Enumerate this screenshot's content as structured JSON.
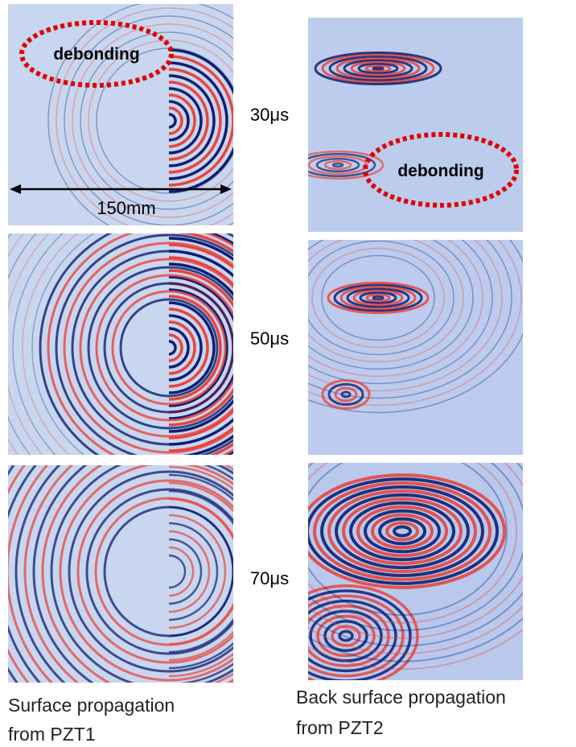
{
  "rows": [
    {
      "time": "30μs",
      "left_annotation": "debonding",
      "right_annotation": "debonding",
      "scale_label": "150mm"
    },
    {
      "time": "50μs"
    },
    {
      "time": "70μs"
    }
  ],
  "captions": {
    "left": [
      "Surface propagation",
      "from PZT1"
    ],
    "right": [
      "Back surface propagation",
      "from PZT2"
    ]
  }
}
